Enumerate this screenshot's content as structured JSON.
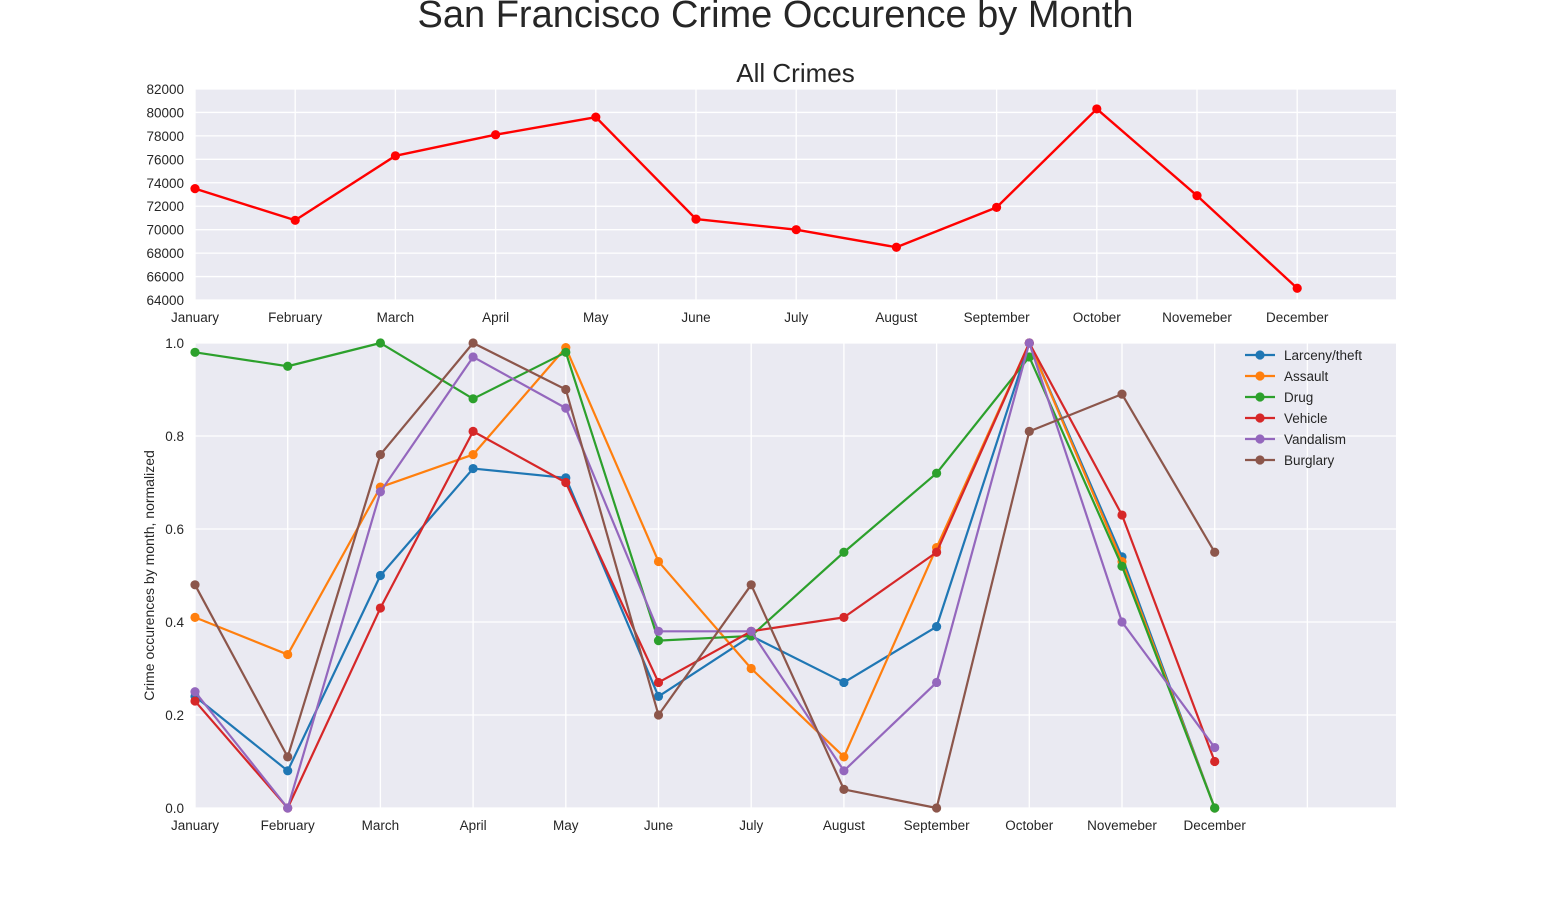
{
  "title": "San Francisco Crime Occurence by Month",
  "chart_data": [
    {
      "type": "line",
      "title": "All Crimes",
      "xlabel": "",
      "ylabel": "",
      "categories": [
        "January",
        "February",
        "March",
        "April",
        "May",
        "June",
        "July",
        "August",
        "September",
        "October",
        "Novemeber",
        "December"
      ],
      "ylim": [
        64000,
        82000
      ],
      "yticks": [
        "64000",
        "66000",
        "68000",
        "70000",
        "72000",
        "74000",
        "76000",
        "78000",
        "80000",
        "82000"
      ],
      "grid": true,
      "series": [
        {
          "color": "#ff0000",
          "values": [
            73500,
            70800,
            76300,
            78100,
            79600,
            70900,
            70000,
            68500,
            71900,
            80300,
            72900,
            65000
          ]
        }
      ]
    },
    {
      "type": "line",
      "title": "",
      "xlabel": "",
      "ylabel": "Crime occurences by month, normalized",
      "categories": [
        "January",
        "February",
        "March",
        "April",
        "May",
        "June",
        "July",
        "August",
        "September",
        "October",
        "Novemeber",
        "December"
      ],
      "ylim": [
        0.0,
        1.0
      ],
      "yticks": [
        "0.0",
        "0.2",
        "0.4",
        "0.6",
        "0.8",
        "1.0"
      ],
      "grid": true,
      "legend_position": "top-right",
      "series": [
        {
          "name": "Larceny/theft",
          "color": "#1f77b4",
          "values": [
            0.24,
            0.08,
            0.5,
            0.73,
            0.71,
            0.24,
            0.37,
            0.27,
            0.39,
            1.0,
            0.54,
            0.0
          ]
        },
        {
          "name": "Assault",
          "color": "#ff7f0e",
          "values": [
            0.41,
            0.33,
            0.69,
            0.76,
            0.99,
            0.53,
            0.3,
            0.11,
            0.56,
            1.0,
            0.53,
            0.0
          ]
        },
        {
          "name": "Drug",
          "color": "#2ca02c",
          "values": [
            0.98,
            0.95,
            1.0,
            0.88,
            0.98,
            0.36,
            0.37,
            0.55,
            0.72,
            0.97,
            0.52,
            0.0
          ]
        },
        {
          "name": "Vehicle",
          "color": "#d62728",
          "values": [
            0.23,
            0.0,
            0.43,
            0.81,
            0.7,
            0.27,
            0.38,
            0.41,
            0.55,
            1.0,
            0.63,
            0.1
          ]
        },
        {
          "name": "Vandalism",
          "color": "#9467bd",
          "values": [
            0.25,
            0.0,
            0.68,
            0.97,
            0.86,
            0.38,
            0.38,
            0.08,
            0.27,
            1.0,
            0.4,
            0.13
          ]
        },
        {
          "name": "Burglary",
          "color": "#8c564b",
          "values": [
            0.48,
            0.11,
            0.76,
            1.0,
            0.9,
            0.2,
            0.48,
            0.04,
            0.0,
            0.81,
            0.89,
            0.55
          ]
        }
      ]
    }
  ]
}
